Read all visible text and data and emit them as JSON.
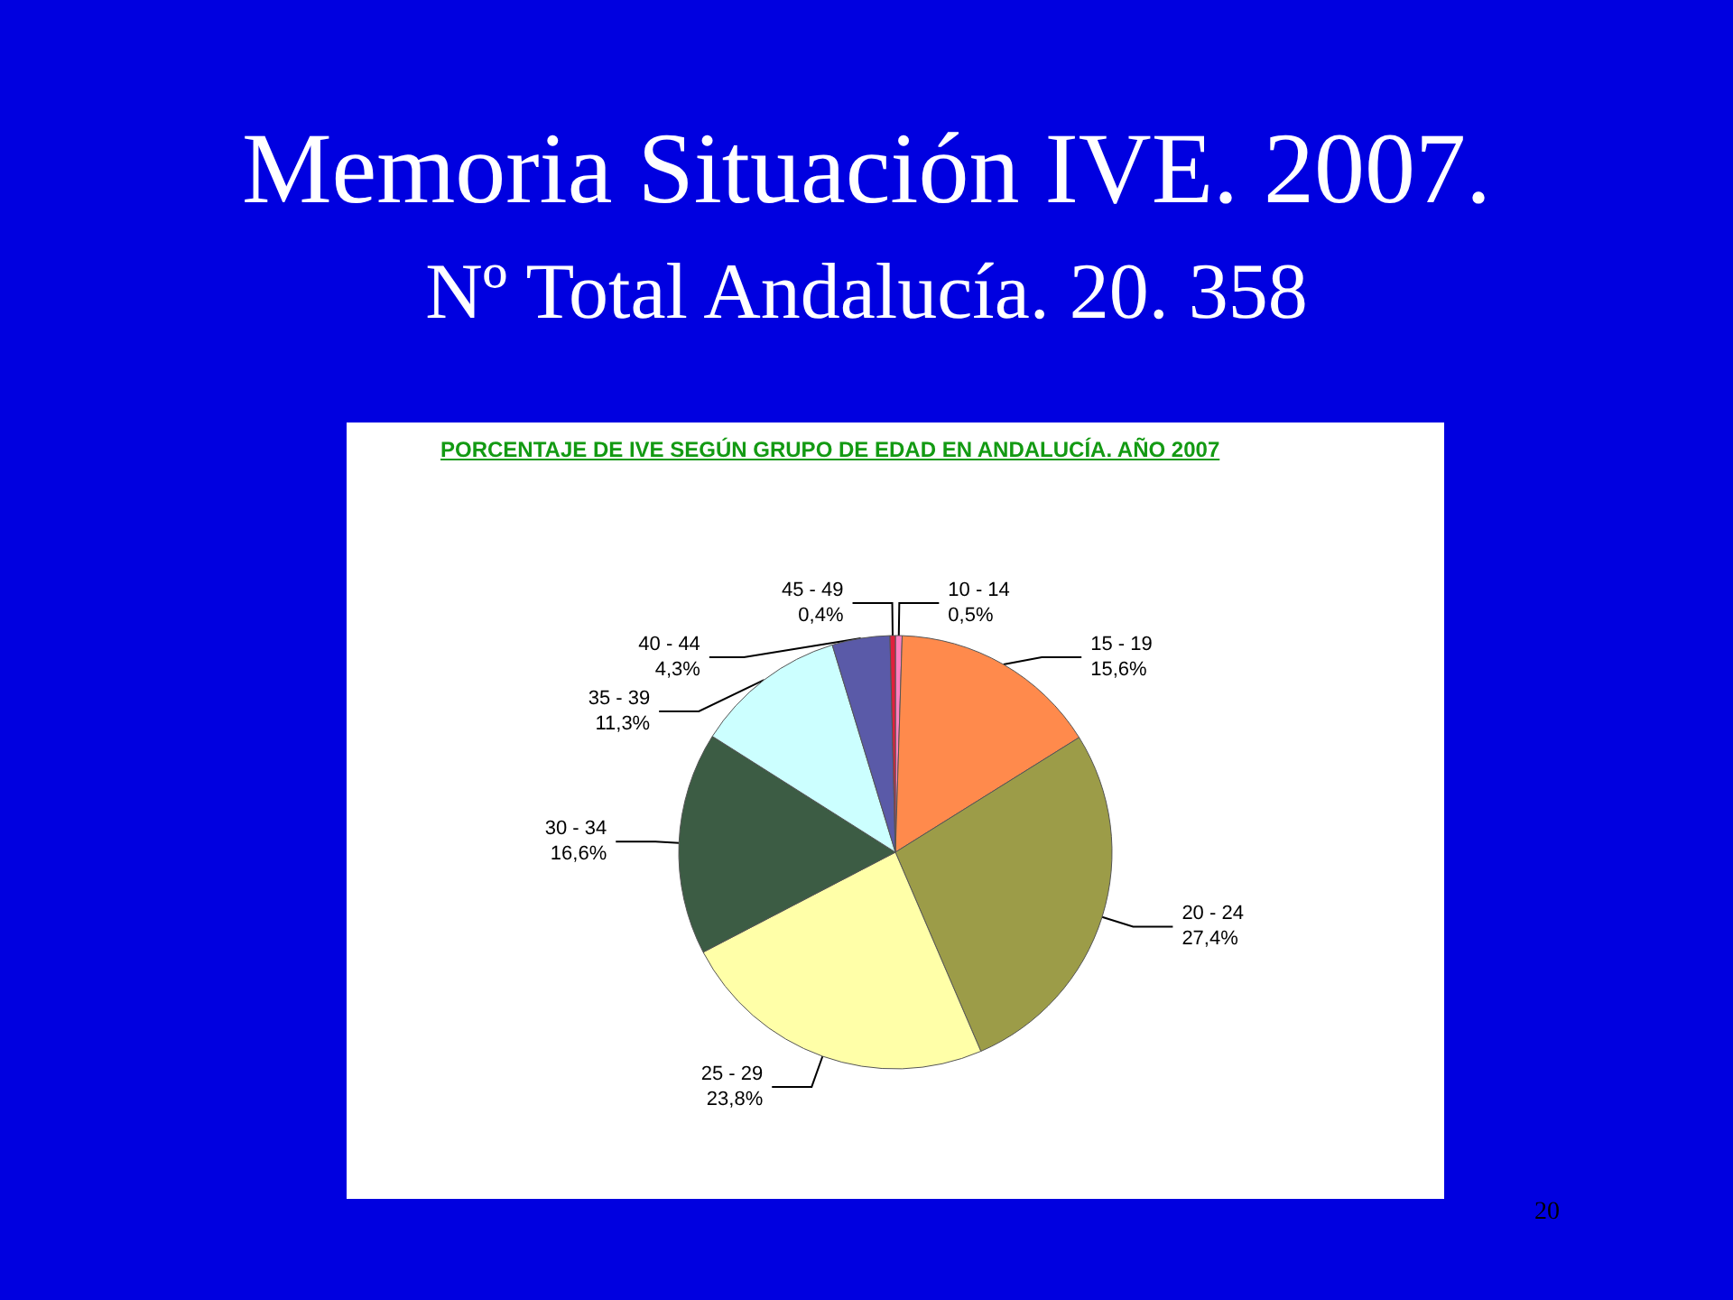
{
  "chart_data": {
    "type": "pie",
    "title": "Memoria Situación IVE. 2007.",
    "subtitle": "Nº Total Andalucía. 20. 358",
    "annotations": [
      "PORCENTAJE DE IVE SEGÚN GRUPO DE EDAD EN ANDALUCÍA. AÑO 2007",
      "20"
    ],
    "categories": [
      "10 - 14",
      "15 - 19",
      "20 - 24",
      "25 - 29",
      "30 - 34",
      "35 - 39",
      "40 - 44",
      "45 - 49"
    ],
    "values": [
      0.5,
      15.6,
      27.4,
      23.8,
      16.6,
      11.3,
      4.3,
      0.4
    ],
    "value_labels": [
      "0,5%",
      "15,6%",
      "27,4%",
      "23,8%",
      "16,6%",
      "11,3%",
      "4,3%",
      "0,4%"
    ],
    "colors": [
      "#ff80c0",
      "#ff8a4c",
      "#9c9c48",
      "#ffffa8",
      "#3c5c44",
      "#ccffff",
      "#5a5aa8",
      "#e0203c"
    ],
    "legend": false
  }
}
